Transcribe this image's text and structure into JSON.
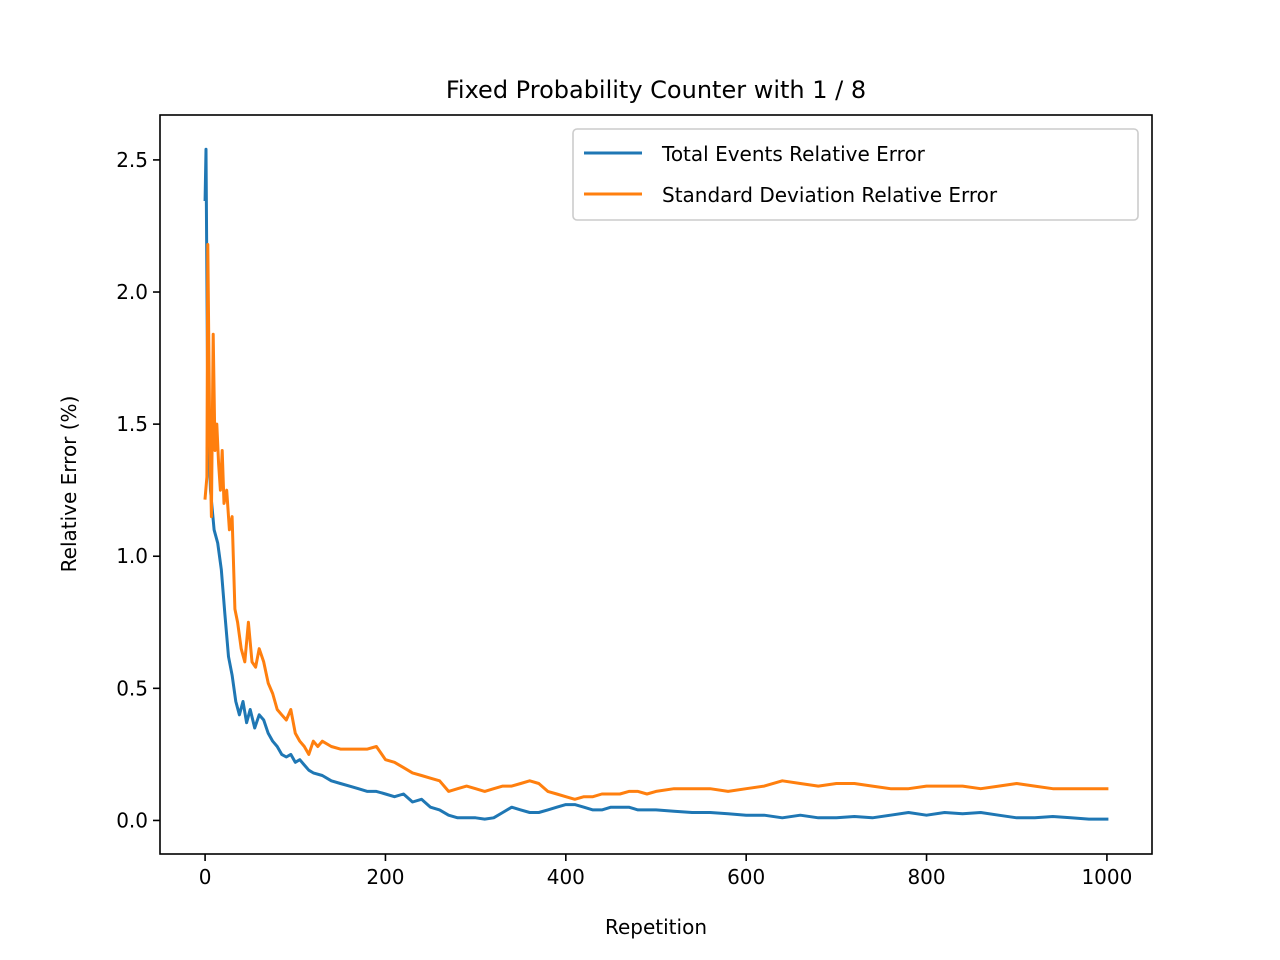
{
  "chart_data": {
    "type": "line",
    "title": "Fixed Probability Counter with 1 / 8",
    "xlabel": "Repetition",
    "ylabel": "Relative Error (%)",
    "xlim": [
      -50,
      1050
    ],
    "ylim": [
      -0.127,
      2.67
    ],
    "xticks": [
      0,
      200,
      400,
      600,
      800,
      1000
    ],
    "xtick_labels": [
      "0",
      "200",
      "400",
      "600",
      "800",
      "1000"
    ],
    "yticks": [
      0.0,
      0.5,
      1.0,
      1.5,
      2.0,
      2.5
    ],
    "ytick_labels": [
      "0.0",
      "0.5",
      "1.0",
      "1.5",
      "2.0",
      "2.5"
    ],
    "grid": false,
    "legend_position": "top-right",
    "series": [
      {
        "name": "Total Events Relative Error",
        "color": "#1f77b4",
        "points": [
          [
            0,
            2.35
          ],
          [
            1,
            2.54
          ],
          [
            3,
            1.55
          ],
          [
            6,
            1.25
          ],
          [
            10,
            1.1
          ],
          [
            14,
            1.05
          ],
          [
            18,
            0.95
          ],
          [
            22,
            0.78
          ],
          [
            26,
            0.62
          ],
          [
            30,
            0.55
          ],
          [
            34,
            0.45
          ],
          [
            38,
            0.4
          ],
          [
            42,
            0.45
          ],
          [
            46,
            0.37
          ],
          [
            50,
            0.42
          ],
          [
            55,
            0.35
          ],
          [
            60,
            0.4
          ],
          [
            65,
            0.38
          ],
          [
            70,
            0.33
          ],
          [
            75,
            0.3
          ],
          [
            80,
            0.28
          ],
          [
            85,
            0.25
          ],
          [
            90,
            0.24
          ],
          [
            95,
            0.25
          ],
          [
            100,
            0.22
          ],
          [
            105,
            0.23
          ],
          [
            110,
            0.21
          ],
          [
            115,
            0.19
          ],
          [
            120,
            0.18
          ],
          [
            130,
            0.17
          ],
          [
            140,
            0.15
          ],
          [
            150,
            0.14
          ],
          [
            160,
            0.13
          ],
          [
            170,
            0.12
          ],
          [
            180,
            0.11
          ],
          [
            190,
            0.11
          ],
          [
            200,
            0.1
          ],
          [
            210,
            0.09
          ],
          [
            220,
            0.1
          ],
          [
            230,
            0.07
          ],
          [
            240,
            0.08
          ],
          [
            250,
            0.05
          ],
          [
            260,
            0.04
          ],
          [
            270,
            0.02
          ],
          [
            280,
            0.01
          ],
          [
            290,
            0.01
          ],
          [
            300,
            0.01
          ],
          [
            310,
            0.005
          ],
          [
            320,
            0.01
          ],
          [
            330,
            0.03
          ],
          [
            340,
            0.05
          ],
          [
            350,
            0.04
          ],
          [
            360,
            0.03
          ],
          [
            370,
            0.03
          ],
          [
            380,
            0.04
          ],
          [
            390,
            0.05
          ],
          [
            400,
            0.06
          ],
          [
            410,
            0.06
          ],
          [
            420,
            0.05
          ],
          [
            430,
            0.04
          ],
          [
            440,
            0.04
          ],
          [
            450,
            0.05
          ],
          [
            460,
            0.05
          ],
          [
            470,
            0.05
          ],
          [
            480,
            0.04
          ],
          [
            490,
            0.04
          ],
          [
            500,
            0.04
          ],
          [
            520,
            0.035
          ],
          [
            540,
            0.03
          ],
          [
            560,
            0.03
          ],
          [
            580,
            0.025
          ],
          [
            600,
            0.02
          ],
          [
            620,
            0.02
          ],
          [
            640,
            0.01
          ],
          [
            660,
            0.02
          ],
          [
            680,
            0.01
          ],
          [
            700,
            0.01
          ],
          [
            720,
            0.015
          ],
          [
            740,
            0.01
          ],
          [
            760,
            0.02
          ],
          [
            780,
            0.03
          ],
          [
            800,
            0.02
          ],
          [
            820,
            0.03
          ],
          [
            840,
            0.025
          ],
          [
            860,
            0.03
          ],
          [
            880,
            0.02
          ],
          [
            900,
            0.01
          ],
          [
            920,
            0.01
          ],
          [
            940,
            0.015
          ],
          [
            960,
            0.01
          ],
          [
            980,
            0.005
          ],
          [
            1000,
            0.005
          ]
        ]
      },
      {
        "name": "Standard Deviation Relative Error",
        "color": "#ff7f0e",
        "points": [
          [
            0,
            1.22
          ],
          [
            2,
            1.3
          ],
          [
            3,
            2.18
          ],
          [
            5,
            1.5
          ],
          [
            7,
            1.15
          ],
          [
            9,
            1.84
          ],
          [
            11,
            1.4
          ],
          [
            13,
            1.5
          ],
          [
            15,
            1.35
          ],
          [
            17,
            1.25
          ],
          [
            19,
            1.4
          ],
          [
            21,
            1.2
          ],
          [
            24,
            1.25
          ],
          [
            27,
            1.1
          ],
          [
            30,
            1.15
          ],
          [
            33,
            0.8
          ],
          [
            36,
            0.75
          ],
          [
            40,
            0.65
          ],
          [
            44,
            0.6
          ],
          [
            48,
            0.75
          ],
          [
            52,
            0.6
          ],
          [
            56,
            0.58
          ],
          [
            60,
            0.65
          ],
          [
            65,
            0.6
          ],
          [
            70,
            0.52
          ],
          [
            75,
            0.48
          ],
          [
            80,
            0.42
          ],
          [
            85,
            0.4
          ],
          [
            90,
            0.38
          ],
          [
            95,
            0.42
          ],
          [
            100,
            0.33
          ],
          [
            105,
            0.3
          ],
          [
            110,
            0.28
          ],
          [
            115,
            0.25
          ],
          [
            120,
            0.3
          ],
          [
            125,
            0.28
          ],
          [
            130,
            0.3
          ],
          [
            140,
            0.28
          ],
          [
            150,
            0.27
          ],
          [
            160,
            0.27
          ],
          [
            170,
            0.27
          ],
          [
            180,
            0.27
          ],
          [
            190,
            0.28
          ],
          [
            200,
            0.23
          ],
          [
            210,
            0.22
          ],
          [
            220,
            0.2
          ],
          [
            230,
            0.18
          ],
          [
            240,
            0.17
          ],
          [
            250,
            0.16
          ],
          [
            260,
            0.15
          ],
          [
            270,
            0.11
          ],
          [
            280,
            0.12
          ],
          [
            290,
            0.13
          ],
          [
            300,
            0.12
          ],
          [
            310,
            0.11
          ],
          [
            320,
            0.12
          ],
          [
            330,
            0.13
          ],
          [
            340,
            0.13
          ],
          [
            350,
            0.14
          ],
          [
            360,
            0.15
          ],
          [
            370,
            0.14
          ],
          [
            380,
            0.11
          ],
          [
            390,
            0.1
          ],
          [
            400,
            0.09
          ],
          [
            410,
            0.08
          ],
          [
            420,
            0.09
          ],
          [
            430,
            0.09
          ],
          [
            440,
            0.1
          ],
          [
            450,
            0.1
          ],
          [
            460,
            0.1
          ],
          [
            470,
            0.11
          ],
          [
            480,
            0.11
          ],
          [
            490,
            0.1
          ],
          [
            500,
            0.11
          ],
          [
            520,
            0.12
          ],
          [
            540,
            0.12
          ],
          [
            560,
            0.12
          ],
          [
            580,
            0.11
          ],
          [
            600,
            0.12
          ],
          [
            620,
            0.13
          ],
          [
            640,
            0.15
          ],
          [
            660,
            0.14
          ],
          [
            680,
            0.13
          ],
          [
            700,
            0.14
          ],
          [
            720,
            0.14
          ],
          [
            740,
            0.13
          ],
          [
            760,
            0.12
          ],
          [
            780,
            0.12
          ],
          [
            800,
            0.13
          ],
          [
            820,
            0.13
          ],
          [
            840,
            0.13
          ],
          [
            860,
            0.12
          ],
          [
            880,
            0.13
          ],
          [
            900,
            0.14
          ],
          [
            920,
            0.13
          ],
          [
            940,
            0.12
          ],
          [
            960,
            0.12
          ],
          [
            980,
            0.12
          ],
          [
            1000,
            0.12
          ]
        ]
      }
    ]
  }
}
